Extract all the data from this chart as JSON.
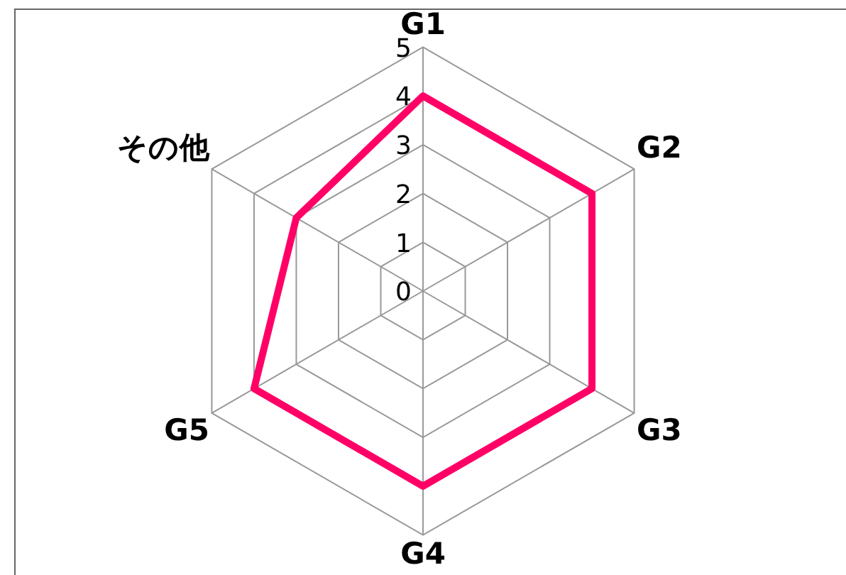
{
  "chart_data": {
    "type": "radar",
    "categories": [
      "G1",
      "G2",
      "G3",
      "G4",
      "G5",
      "その他"
    ],
    "series": [
      {
        "color": "#ff0066",
        "values": [
          4,
          4,
          4,
          4,
          4,
          3
        ]
      }
    ],
    "ylim": [
      0,
      5
    ],
    "yticks": [
      0,
      1,
      2,
      3,
      4,
      5
    ],
    "grid": true,
    "legend": false,
    "marker": "none"
  }
}
